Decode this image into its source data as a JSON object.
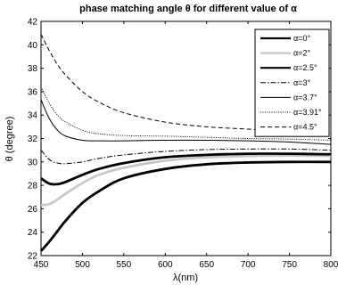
{
  "chart_data": {
    "type": "line",
    "title": "phase matching angle θ for different value of α",
    "xlabel": "λ(nm)",
    "ylabel": "θ (degree)",
    "xlim": [
      450,
      800
    ],
    "ylim": [
      22,
      42
    ],
    "xticks": [
      "450",
      "500",
      "550",
      "600",
      "650",
      "700",
      "750",
      "800"
    ],
    "yticks": [
      "22",
      "24",
      "26",
      "28",
      "30",
      "32",
      "34",
      "36",
      "38",
      "40",
      "42"
    ],
    "grid": false,
    "legend_position": "top-right",
    "x": [
      450,
      460,
      470,
      480,
      500,
      520,
      550,
      600,
      650,
      700,
      750,
      800
    ],
    "series": [
      {
        "name": "α=0°",
        "color": "#000000",
        "style": "thick",
        "values": [
          22.4,
          23.2,
          24.1,
          25.0,
          26.5,
          27.5,
          28.6,
          29.4,
          29.8,
          29.95,
          30.0,
          30.0
        ]
      },
      {
        "name": "α=2°",
        "color": "#c8c8c8",
        "style": "thick",
        "values": [
          26.3,
          26.4,
          26.8,
          27.3,
          28.2,
          28.9,
          29.5,
          30.1,
          30.4,
          30.5,
          30.55,
          30.5
        ]
      },
      {
        "name": "α=2.5°",
        "color": "#000000",
        "style": "thick",
        "values": [
          28.6,
          28.15,
          28.1,
          28.3,
          28.9,
          29.4,
          29.9,
          30.4,
          30.6,
          30.7,
          30.7,
          30.65
        ]
      },
      {
        "name": "α=3°",
        "color": "#000000",
        "style": "dashdot",
        "values": [
          31.0,
          30.2,
          29.9,
          29.85,
          30.0,
          30.3,
          30.6,
          30.9,
          31.05,
          31.1,
          31.1,
          31.0
        ]
      },
      {
        "name": "α=3.7°",
        "color": "#000000",
        "style": "solid",
        "values": [
          35.3,
          33.7,
          32.7,
          32.2,
          31.85,
          31.8,
          31.8,
          31.85,
          31.85,
          31.8,
          31.7,
          31.5
        ]
      },
      {
        "name": "α=3.91°",
        "color": "#000000",
        "style": "dotted",
        "values": [
          36.4,
          35.0,
          34.0,
          33.4,
          32.7,
          32.4,
          32.25,
          32.2,
          32.1,
          32.0,
          31.95,
          31.85
        ]
      },
      {
        "name": "α=4.5°",
        "color": "#000000",
        "style": "dashed",
        "values": [
          40.9,
          39.5,
          38.3,
          37.4,
          36.0,
          35.1,
          34.2,
          33.4,
          33.0,
          32.8,
          32.6,
          32.4
        ]
      }
    ]
  }
}
